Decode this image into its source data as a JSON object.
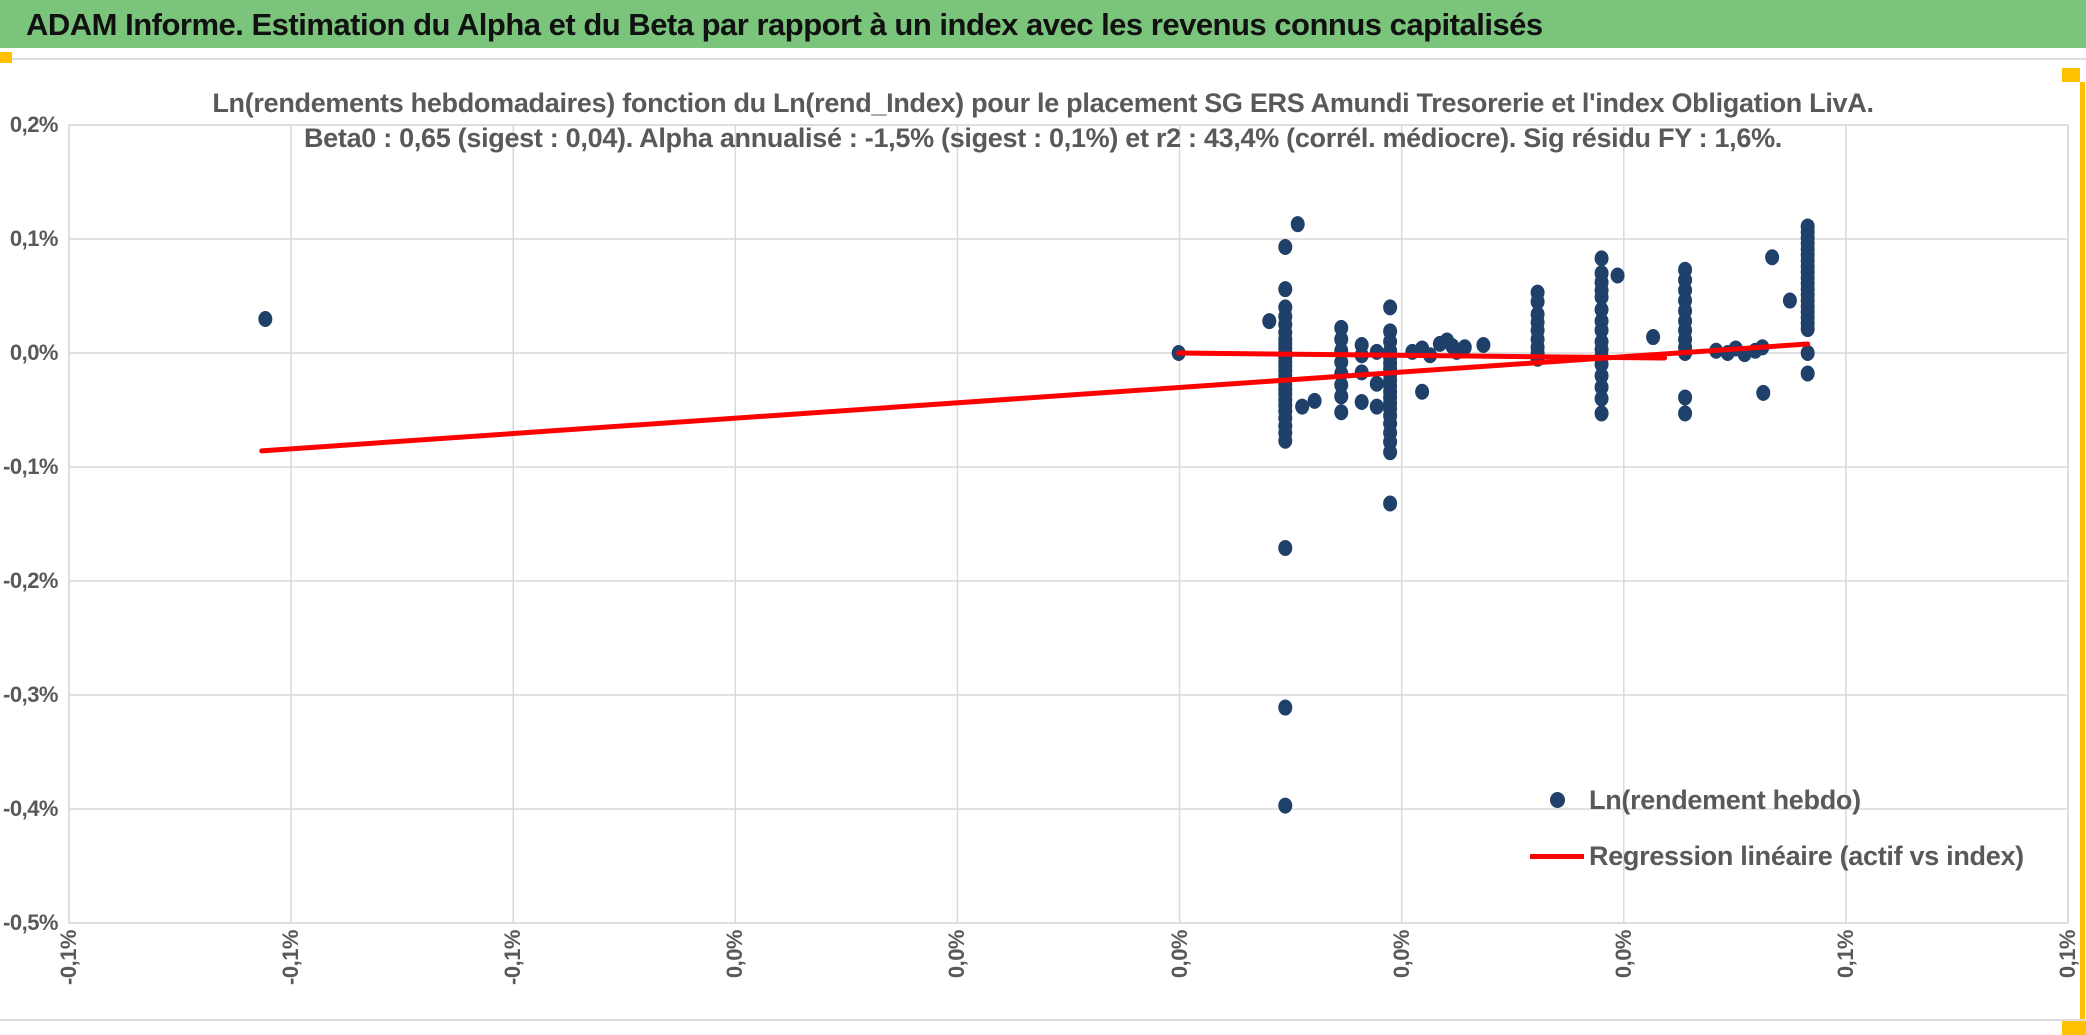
{
  "header": {
    "title": "ADAM Informe. Estimation du Alpha et du Beta par rapport à un index avec les revenus connus capitalisés",
    "bg_color": "#7BC47B"
  },
  "chart": {
    "title_line1": "Ln(rendements hebdomadaires) fonction du Ln(rend_Index) pour le placement SG ERS Amundi Tresorerie et l'index Obligation LivA.",
    "title_line2": "Beta0 : 0,65 (sigest : 0,04). Alpha annualisé : -1,5% (sigest : 0,1%) et r2 : 43,4% (corrél. médiocre). Sig résidu FY : 1,6%."
  },
  "colors": {
    "accent_gold": "#FFC000",
    "grid": "#D9D9D9",
    "text_gray": "#595959",
    "scatter_navy": "#1F4068",
    "regression_red": "#FE0000",
    "header_green": "#7BC47B"
  },
  "chart_data": {
    "type": "scatter",
    "title": "Ln(rendements hebdomadaires) fonction du Ln(rend_Index) pour le placement SG ERS Amundi Tresorerie et l'index Obligation LivA.",
    "subtitle": "Beta0 : 0,65 (sigest : 0,04). Alpha annualisé : -1,5% (sigest : 0,1%) et r2 : 43,4% (corrél. médiocre). Sig résidu FY : 1,6%.",
    "xlabel": "",
    "ylabel": "",
    "grid": true,
    "legend_position": "inside-bottom-right",
    "x_axis": {
      "min": -0.125,
      "max": 0.1,
      "step": 0.025,
      "unit": "%",
      "tick_labels": [
        "-0,1%",
        "-0,1%",
        "-0,1%",
        "0,0%",
        "0,0%",
        "0,0%",
        "0,0%",
        "0,0%",
        "0,1%",
        "0,1%"
      ]
    },
    "y_axis": {
      "min": -0.5,
      "max": 0.2,
      "step": 0.1,
      "unit": "%",
      "tick_labels": [
        "0,2%",
        "0,1%",
        "0,0%",
        "-0,1%",
        "-0,2%",
        "-0,3%",
        "-0,4%",
        "-0,5%"
      ]
    },
    "series": [
      {
        "name": "Ln(rendement hebdo)",
        "type": "scatter",
        "color": "#1F4068",
        "clusters": [
          {
            "x": 0.0119,
            "ys": [
              0.093,
              0.056,
              0.04,
              0.032,
              0.025,
              0.018,
              0.012,
              0.008,
              0.004,
              0.0,
              -0.004,
              -0.008,
              -0.012,
              -0.016,
              -0.02,
              -0.024,
              -0.028,
              -0.032,
              -0.036,
              -0.041,
              -0.046,
              -0.051,
              -0.057,
              -0.064,
              -0.07,
              -0.077,
              -0.171,
              -0.311,
              -0.397
            ]
          },
          {
            "x": 0.0182,
            "ys": [
              0.022,
              0.012,
              0.002,
              -0.008,
              -0.018,
              -0.028,
              -0.038,
              -0.052
            ]
          },
          {
            "x": 0.0205,
            "ys": [
              0.007,
              -0.002,
              -0.017,
              -0.043
            ]
          },
          {
            "x": 0.0222,
            "ys": [
              0.001,
              -0.027,
              -0.047
            ]
          },
          {
            "x": 0.0237,
            "ys": [
              0.04,
              0.019,
              0.01,
              0.002,
              -0.004,
              -0.009,
              -0.014,
              -0.019,
              -0.024,
              -0.029,
              -0.034,
              -0.039,
              -0.044,
              -0.049,
              -0.055,
              -0.062,
              -0.07,
              -0.078,
              -0.087,
              -0.132
            ]
          },
          {
            "x": 0.0403,
            "ys": [
              0.053,
              0.045,
              0.034,
              0.027,
              0.02,
              0.012,
              0.005,
              0.0,
              -0.005
            ]
          },
          {
            "x": 0.0475,
            "ys": [
              0.083,
              0.07,
              0.062,
              0.055,
              0.049,
              0.038,
              0.028,
              0.02,
              0.01,
              0.003,
              -0.003,
              -0.01,
              -0.02,
              -0.03,
              -0.04,
              -0.053
            ]
          },
          {
            "x": 0.0569,
            "ys": [
              0.073,
              0.064,
              0.055,
              0.046,
              0.037,
              0.028,
              0.02,
              0.012,
              0.005,
              0.0,
              -0.039,
              -0.053
            ]
          },
          {
            "x": 0.0707,
            "ys": [
              0.111,
              0.106,
              0.101,
              0.096,
              0.091,
              0.086,
              0.081,
              0.076,
              0.071,
              0.066,
              0.061,
              0.056,
              0.051,
              0.046,
              0.041,
              0.036,
              0.031,
              0.026,
              0.021,
              0.0,
              -0.018
            ]
          }
        ],
        "points": [
          [
            -0.1029,
            0.0298
          ],
          [
            -0.0001,
            0.0
          ],
          [
            0.0133,
            0.113
          ],
          [
            0.0101,
            0.028
          ],
          [
            0.0138,
            -0.047
          ],
          [
            0.0152,
            -0.042
          ],
          [
            0.0273,
            -0.034
          ],
          [
            0.0262,
            0.001
          ],
          [
            0.0273,
            0.004
          ],
          [
            0.0282,
            -0.002
          ],
          [
            0.0293,
            0.008
          ],
          [
            0.0301,
            0.011
          ],
          [
            0.0307,
            0.006
          ],
          [
            0.0312,
            0.001
          ],
          [
            0.0321,
            0.005
          ],
          [
            0.0342,
            0.007
          ],
          [
            0.0493,
            0.068
          ],
          [
            0.0533,
            0.014
          ],
          [
            0.0604,
            0.002
          ],
          [
            0.0617,
            0.0
          ],
          [
            0.0626,
            0.004
          ],
          [
            0.0636,
            -0.001
          ],
          [
            0.0648,
            0.002
          ],
          [
            0.0656,
            0.005
          ],
          [
            0.0667,
            0.084
          ],
          [
            0.0687,
            0.046
          ],
          [
            0.0657,
            -0.035
          ]
        ]
      },
      {
        "name": "Regression linéaire (actif vs index)",
        "type": "line",
        "color": "#FE0000",
        "segments": [
          {
            "x1": -0.1033,
            "y1": -0.0859,
            "x2": 0.0707,
            "y2": 0.0079
          },
          {
            "x1": -0.0001,
            "y1": 0.0,
            "x2": 0.0546,
            "y2": -0.0044
          }
        ]
      }
    ]
  }
}
